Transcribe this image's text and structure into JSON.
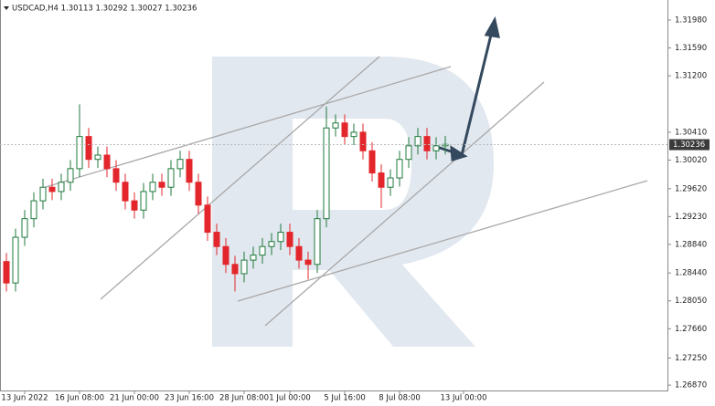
{
  "chart_data": {
    "type": "candlestick",
    "title": "USDCAD,H4  1.30113 1.30292 1.30027 1.30236",
    "categories": [
      null,
      null,
      "13 Jun 2022",
      null,
      null,
      null,
      null,
      null,
      "16 Jun 08:00",
      null,
      null,
      null,
      null,
      null,
      "21 Jun 00:00",
      null,
      null,
      null,
      null,
      null,
      "23 Jun 16:00",
      null,
      null,
      null,
      null,
      null,
      "28 Jun 08:00",
      null,
      null,
      null,
      null,
      "1 Jul 00:00",
      null,
      null,
      null,
      null,
      null,
      "5 Jul 16:00",
      null,
      null,
      null,
      null,
      null,
      "8 Jul 08:00",
      null,
      null,
      null,
      null,
      null,
      null,
      "13 Jul 00:00"
    ],
    "open": [
      1.286,
      1.283,
      1.2894,
      1.292,
      1.2945,
      1.2964,
      1.2958,
      1.2971,
      1.299,
      1.3035,
      1.3003,
      1.3009,
      1.299,
      1.2971,
      1.2945,
      1.2932,
      1.2958,
      1.2971,
      1.2964,
      1.299,
      1.3003,
      1.2971,
      1.2939,
      1.2901,
      1.2881,
      1.2856,
      1.2843,
      1.2862,
      1.2869,
      1.2881,
      1.2888,
      1.2901,
      1.2881,
      1.2862,
      1.2856,
      1.292,
      1.3047,
      1.3054,
      1.3035,
      1.3041,
      1.3015,
      1.2984,
      1.2964,
      1.2977,
      1.3003,
      1.3022,
      1.3035,
      1.3015,
      1.3022,
      null,
      null
    ],
    "high": [
      1.2872,
      1.2906,
      1.2932,
      1.2957,
      1.2976,
      1.2976,
      1.2983,
      1.3002,
      1.308,
      1.3047,
      1.3021,
      1.3021,
      1.3002,
      1.2983,
      1.2957,
      1.297,
      1.2983,
      1.2983,
      1.3002,
      1.3015,
      1.3015,
      1.2983,
      1.2951,
      1.2913,
      1.2893,
      1.2868,
      1.2874,
      1.2881,
      1.2893,
      1.29,
      1.2913,
      1.2913,
      1.2893,
      1.2874,
      1.2932,
      1.3077,
      1.3066,
      1.3066,
      1.3053,
      1.3053,
      1.3027,
      1.2996,
      1.2989,
      1.3015,
      1.3034,
      1.3047,
      1.3047,
      1.3034,
      1.3036,
      null,
      null
    ],
    "low": [
      1.2818,
      1.2818,
      1.2882,
      1.2908,
      1.2933,
      1.2946,
      1.2946,
      1.2959,
      1.2978,
      1.2991,
      1.2991,
      1.2978,
      1.2959,
      1.2933,
      1.292,
      1.292,
      1.2946,
      1.2952,
      1.2952,
      1.2978,
      1.2959,
      1.2927,
      1.2889,
      1.2869,
      1.2844,
      1.2818,
      1.2831,
      1.285,
      1.2857,
      1.2869,
      1.2876,
      1.2869,
      1.285,
      1.2835,
      1.2844,
      1.2908,
      1.3035,
      1.3023,
      1.3023,
      1.3003,
      1.2972,
      1.2935,
      1.2952,
      1.2965,
      1.2991,
      1.301,
      1.3003,
      1.3003,
      1.301,
      null,
      null
    ],
    "close": [
      1.283,
      1.2894,
      1.292,
      1.2945,
      1.2964,
      1.2958,
      1.2971,
      1.299,
      1.3035,
      1.3003,
      1.3009,
      1.299,
      1.2971,
      1.2945,
      1.2932,
      1.2958,
      1.2971,
      1.2964,
      1.299,
      1.3003,
      1.2971,
      1.2939,
      1.2901,
      1.2881,
      1.2856,
      1.2843,
      1.2862,
      1.2869,
      1.2881,
      1.2888,
      1.2901,
      1.2881,
      1.2862,
      1.2856,
      1.292,
      1.3047,
      1.3054,
      1.3035,
      1.3041,
      1.3015,
      1.2984,
      1.2964,
      1.2977,
      1.3003,
      1.3022,
      1.3035,
      1.3015,
      1.3022,
      1.3024,
      null,
      null
    ],
    "up_color": "#1f7a3c",
    "down_color": "#e3262b",
    "ylim": [
      1.26795,
      1.32261
    ],
    "yticks": [
      {
        "value": 1.3198,
        "label": "1.31980"
      },
      {
        "value": 1.3159,
        "label": "1.31590"
      },
      {
        "value": 1.312,
        "label": "1.31200"
      },
      {
        "value": 1.3041,
        "label": "1.30410"
      },
      {
        "value": 1.3002,
        "label": "1.30020"
      },
      {
        "value": 1.2962,
        "label": "1.29620"
      },
      {
        "value": 1.2923,
        "label": "1.29230"
      },
      {
        "value": 1.2884,
        "label": "1.28840"
      },
      {
        "value": 1.2844,
        "label": "1.28440"
      },
      {
        "value": 1.2805,
        "label": "1.28050"
      },
      {
        "value": 1.2766,
        "label": "1.27660"
      },
      {
        "value": 1.2725,
        "label": "1.27250"
      },
      {
        "value": 1.2687,
        "label": "1.26870"
      }
    ],
    "last_price": {
      "value": 1.30236,
      "label": "1.30236"
    }
  }
}
